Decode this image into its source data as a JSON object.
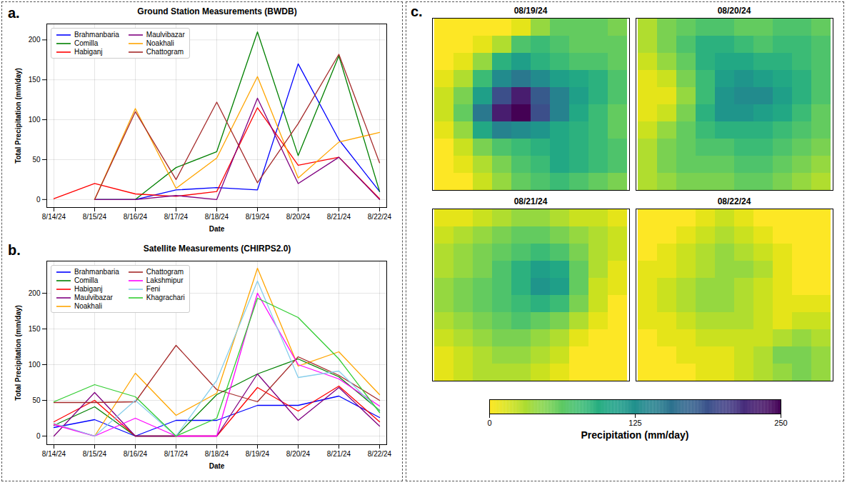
{
  "chart_data": [
    {
      "type": "line",
      "panel": "a.",
      "title": "Ground Station Measurements (BWDB)",
      "x_label": "Date",
      "y_label": "Total Precipitation (mm/day)",
      "x": [
        "8/14/24",
        "8/15/24",
        "8/16/24",
        "8/17/24",
        "8/18/24",
        "8/19/24",
        "8/20/24",
        "8/21/24",
        "8/22/24"
      ],
      "ylim": [
        -10,
        220
      ],
      "yticks": [
        0,
        50,
        100,
        150,
        200
      ],
      "grid": true,
      "legend": "upper left",
      "series": [
        {
          "name": "Brahmanbaria",
          "color": "#0000ff",
          "values": [
            null,
            0,
            0,
            12,
            15,
            12,
            170,
            75,
            10
          ]
        },
        {
          "name": "Comilla",
          "color": "#008000",
          "values": [
            null,
            0,
            0,
            40,
            60,
            210,
            55,
            180,
            10
          ]
        },
        {
          "name": "Habiganj",
          "color": "#ff0000",
          "values": [
            1,
            20,
            7,
            4,
            10,
            115,
            43,
            53,
            1
          ]
        },
        {
          "name": "Maulvibazar",
          "color": "#800080",
          "values": [
            null,
            0,
            0,
            5,
            0,
            127,
            20,
            53,
            0
          ]
        },
        {
          "name": "Noakhali",
          "color": "#ffa500",
          "values": [
            null,
            0,
            114,
            14,
            52,
            154,
            27,
            72,
            84
          ]
        },
        {
          "name": "Chattogram",
          "color": "#a52a2a",
          "values": [
            null,
            0,
            110,
            25,
            122,
            21,
            95,
            182,
            46
          ]
        }
      ]
    },
    {
      "type": "line",
      "panel": "b.",
      "title": "Satellite Measurements (CHIRPS2.0)",
      "x_label": "Date",
      "y_label": "Total Precipitation (mm/day)",
      "x": [
        "8/14/24",
        "8/15/24",
        "8/16/24",
        "8/17/24",
        "8/18/24",
        "8/19/24",
        "8/20/24",
        "8/21/24",
        "8/22/24"
      ],
      "ylim": [
        -12,
        245
      ],
      "yticks": [
        0,
        50,
        100,
        150,
        200
      ],
      "grid": true,
      "legend": "upper left",
      "series": [
        {
          "name": "Brahmanbaria",
          "color": "#0000ff",
          "values": [
            12,
            23,
            0,
            22,
            22,
            43,
            43,
            56,
            26
          ]
        },
        {
          "name": "Comilla",
          "color": "#008000",
          "values": [
            15,
            41,
            0,
            0,
            58,
            87,
            108,
            83,
            36
          ]
        },
        {
          "name": "Habiganj",
          "color": "#ff0000",
          "values": [
            20,
            50,
            0,
            0,
            0,
            68,
            35,
            70,
            20
          ]
        },
        {
          "name": "Maulvibazar",
          "color": "#800080",
          "values": [
            0,
            61,
            0,
            0,
            0,
            87,
            22,
            68,
            14
          ]
        },
        {
          "name": "Noakhali",
          "color": "#ffa500",
          "values": [
            17,
            0,
            88,
            29,
            60,
            235,
            98,
            118,
            58
          ]
        },
        {
          "name": "Chattogram",
          "color": "#a52a2a",
          "values": [
            47,
            47,
            48,
            127,
            65,
            48,
            111,
            85,
            50
          ]
        },
        {
          "name": "Lakshmipur",
          "color": "#ff00ff",
          "values": [
            16,
            0,
            25,
            0,
            0,
            200,
            100,
            80,
            42
          ]
        },
        {
          "name": "Feni",
          "color": "#87ceeb",
          "values": [
            18,
            0,
            50,
            0,
            78,
            217,
            82,
            91,
            35
          ]
        },
        {
          "name": "Khagrachari",
          "color": "#32cd32",
          "values": [
            48,
            72,
            55,
            0,
            25,
            193,
            166,
            108,
            33
          ]
        }
      ]
    },
    {
      "type": "heatmap_grid",
      "panel": "c.",
      "tick_labels": false,
      "colorbar": {
        "range": [
          0,
          250
        ],
        "ticks": [
          0,
          125,
          250
        ],
        "label": "Precipitation (mm/day)"
      },
      "panels": [
        {
          "title": "08/19/24",
          "cells": [
            [
              0,
              0,
              0,
              0,
              10,
              40,
              60,
              60,
              60,
              50
            ],
            [
              0,
              0,
              10,
              30,
              70,
              80,
              70,
              60,
              60,
              60
            ],
            [
              0,
              10,
              40,
              90,
              110,
              90,
              80,
              70,
              70,
              60
            ],
            [
              10,
              30,
              80,
              130,
              150,
              130,
              110,
              100,
              90,
              70
            ],
            [
              20,
              50,
              110,
              190,
              230,
              180,
              140,
              110,
              90,
              70
            ],
            [
              20,
              60,
              150,
              230,
              250,
              190,
              140,
              100,
              80,
              60
            ],
            [
              10,
              40,
              100,
              140,
              130,
              120,
              100,
              90,
              80,
              60
            ],
            [
              0,
              20,
              50,
              70,
              80,
              90,
              100,
              90,
              80,
              70
            ],
            [
              0,
              10,
              30,
              50,
              70,
              80,
              100,
              90,
              80,
              70
            ],
            [
              0,
              0,
              20,
              40,
              60,
              70,
              80,
              70,
              60,
              50
            ]
          ]
        },
        {
          "title": "08/20/24",
          "cells": [
            [
              30,
              50,
              60,
              70,
              70,
              60,
              60,
              70,
              70,
              60
            ],
            [
              30,
              50,
              70,
              90,
              90,
              80,
              70,
              80,
              80,
              70
            ],
            [
              20,
              40,
              60,
              90,
              100,
              100,
              90,
              90,
              80,
              70
            ],
            [
              10,
              20,
              50,
              80,
              110,
              120,
              110,
              100,
              90,
              70
            ],
            [
              10,
              10,
              40,
              80,
              120,
              130,
              130,
              110,
              90,
              70
            ],
            [
              10,
              20,
              50,
              90,
              120,
              120,
              110,
              100,
              80,
              60
            ],
            [
              20,
              40,
              60,
              80,
              90,
              90,
              90,
              80,
              70,
              60
            ],
            [
              30,
              50,
              60,
              70,
              70,
              80,
              80,
              70,
              60,
              50
            ],
            [
              30,
              50,
              60,
              60,
              60,
              70,
              70,
              60,
              50,
              40
            ],
            [
              30,
              40,
              50,
              50,
              50,
              60,
              60,
              50,
              40,
              30
            ]
          ]
        },
        {
          "title": "08/21/24",
          "cells": [
            [
              10,
              10,
              20,
              30,
              40,
              40,
              30,
              20,
              20,
              10
            ],
            [
              20,
              30,
              40,
              50,
              60,
              60,
              50,
              40,
              30,
              20
            ],
            [
              30,
              40,
              50,
              60,
              70,
              80,
              70,
              50,
              30,
              20
            ],
            [
              30,
              40,
              50,
              70,
              90,
              110,
              100,
              60,
              30,
              10
            ],
            [
              40,
              50,
              60,
              70,
              90,
              120,
              110,
              60,
              20,
              10
            ],
            [
              40,
              50,
              60,
              70,
              80,
              90,
              80,
              50,
              20,
              0
            ],
            [
              30,
              40,
              50,
              60,
              70,
              60,
              50,
              30,
              10,
              0
            ],
            [
              20,
              30,
              40,
              50,
              50,
              40,
              30,
              10,
              0,
              0
            ],
            [
              10,
              20,
              30,
              40,
              40,
              30,
              20,
              0,
              0,
              0
            ],
            [
              10,
              20,
              30,
              30,
              30,
              20,
              10,
              0,
              0,
              0
            ]
          ]
        },
        {
          "title": "08/22/24",
          "cells": [
            [
              0,
              0,
              0,
              10,
              20,
              10,
              0,
              0,
              0,
              0
            ],
            [
              0,
              0,
              10,
              20,
              30,
              20,
              10,
              0,
              0,
              0
            ],
            [
              0,
              10,
              20,
              30,
              40,
              30,
              20,
              10,
              0,
              0
            ],
            [
              10,
              10,
              20,
              30,
              40,
              40,
              30,
              10,
              0,
              0
            ],
            [
              10,
              20,
              30,
              40,
              40,
              30,
              20,
              10,
              0,
              0
            ],
            [
              10,
              20,
              30,
              40,
              40,
              30,
              20,
              10,
              10,
              10
            ],
            [
              10,
              10,
              20,
              30,
              30,
              30,
              20,
              10,
              20,
              20
            ],
            [
              0,
              10,
              10,
              20,
              20,
              20,
              20,
              30,
              40,
              30
            ],
            [
              0,
              0,
              10,
              10,
              10,
              20,
              30,
              50,
              50,
              40
            ],
            [
              0,
              0,
              0,
              10,
              10,
              20,
              30,
              40,
              50,
              40
            ]
          ]
        }
      ]
    }
  ]
}
